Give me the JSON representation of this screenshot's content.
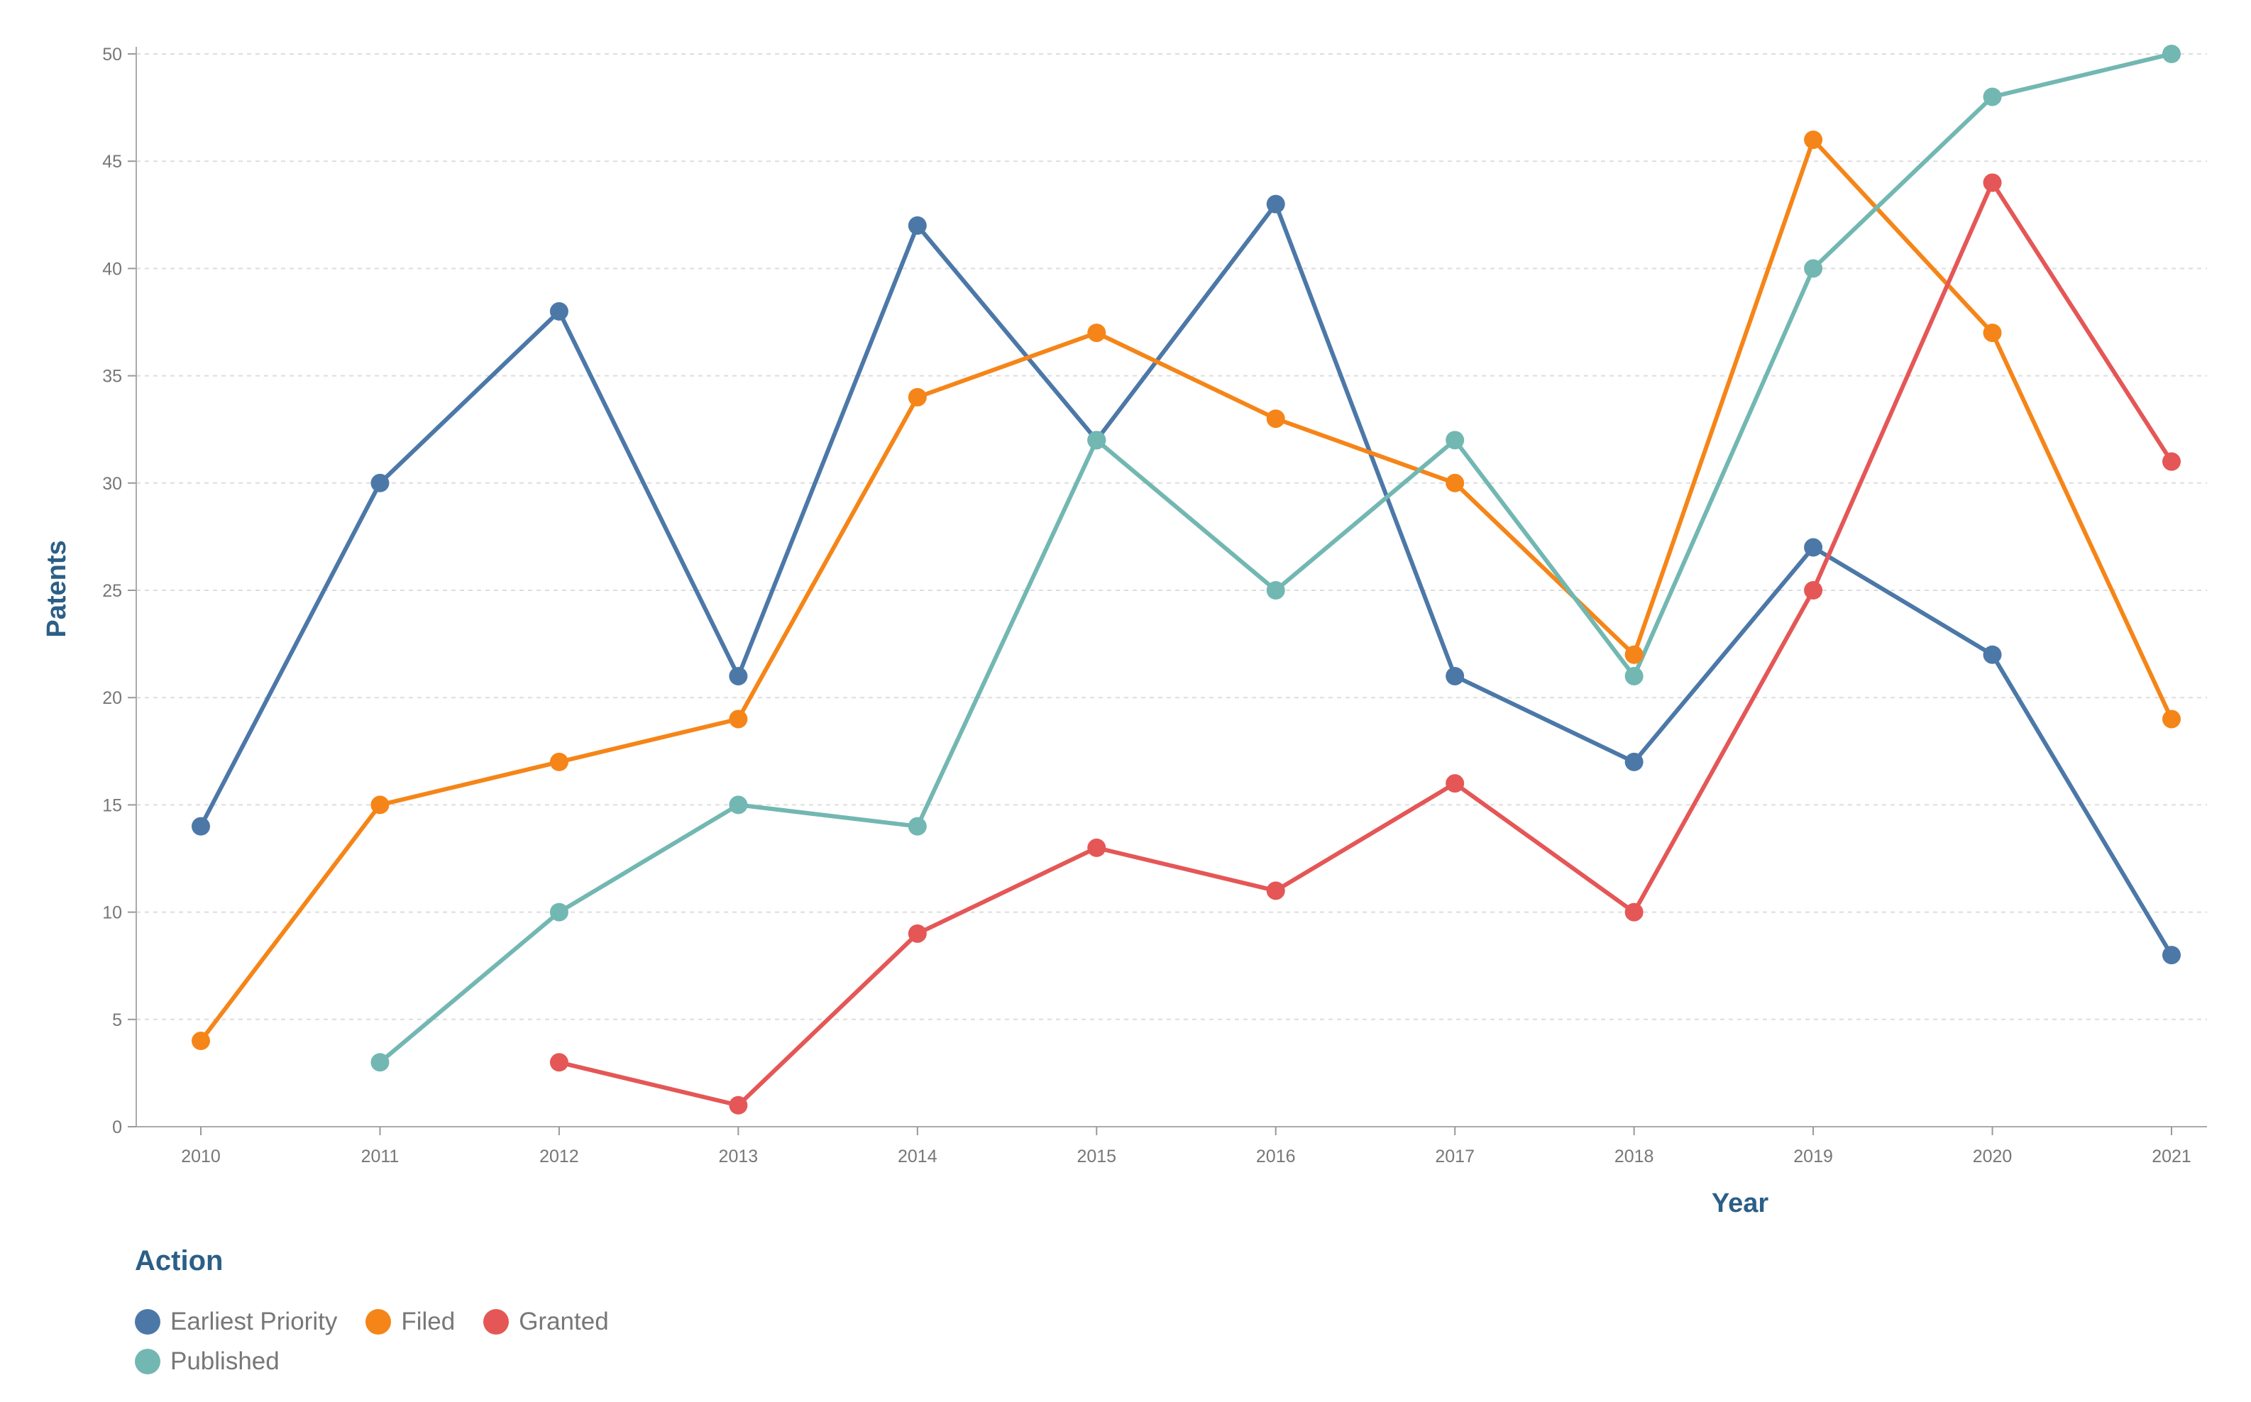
{
  "chart_data": {
    "type": "line",
    "title": "",
    "xlabel": "Year",
    "ylabel": "Patents",
    "x": [
      "2010",
      "2011",
      "2012",
      "2013",
      "2014",
      "2015",
      "2016",
      "2017",
      "2018",
      "2019",
      "2020",
      "2021"
    ],
    "ylim": [
      0,
      50
    ],
    "y_ticks": [
      0,
      5,
      10,
      15,
      20,
      25,
      30,
      35,
      40,
      45,
      50
    ],
    "grid": true,
    "legend_title": "Action",
    "legend_position": "bottom-left",
    "series": [
      {
        "name": "Earliest Priority",
        "color": "#4c78a8",
        "values": [
          14,
          30,
          38,
          21,
          42,
          32,
          43,
          21,
          17,
          27,
          22,
          8
        ]
      },
      {
        "name": "Filed",
        "color": "#f58518",
        "values": [
          4,
          15,
          17,
          19,
          34,
          37,
          33,
          30,
          22,
          46,
          37,
          19
        ]
      },
      {
        "name": "Granted",
        "color": "#e45756",
        "values": [
          null,
          null,
          3,
          1,
          9,
          13,
          11,
          16,
          10,
          25,
          44,
          31
        ]
      },
      {
        "name": "Published",
        "color": "#72b7b2",
        "values": [
          null,
          3,
          10,
          15,
          14,
          32,
          25,
          32,
          21,
          40,
          48,
          50
        ]
      }
    ]
  }
}
